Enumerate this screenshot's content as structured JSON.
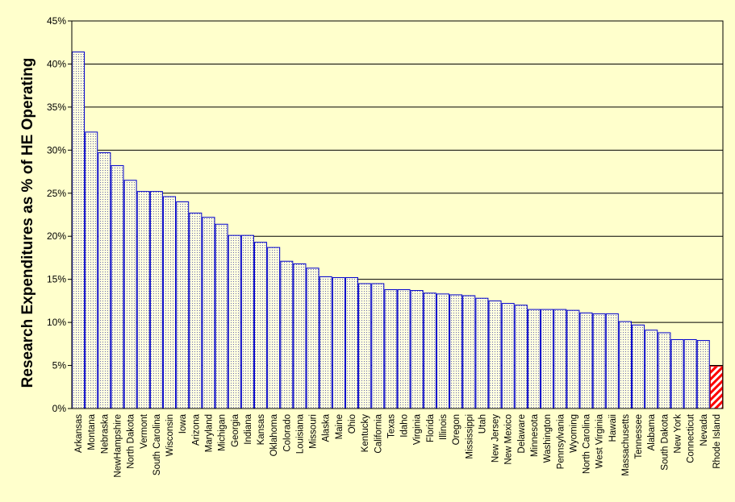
{
  "chart_data": {
    "type": "bar",
    "title": "",
    "xlabel": "",
    "ylabel": "Research Expenditures as % of HE Operating",
    "ylim": [
      0,
      45
    ],
    "yticks": [
      0,
      5,
      10,
      15,
      20,
      25,
      30,
      35,
      40,
      45
    ],
    "ytick_labels": [
      "0%",
      "5%",
      "10%",
      "15%",
      "20%",
      "25%",
      "30%",
      "35%",
      "40%",
      "45%"
    ],
    "grid": "horizontal",
    "categories": [
      "Arkansas",
      "Montana",
      "Nebraska",
      "NewHampshire",
      "North Dakota",
      "Vermont",
      "South Carolina",
      "Wisconsin",
      "Iowa",
      "Arizona",
      "Maryland",
      "Michigan",
      "Georgia",
      "Indiana",
      "Kansas",
      "Oklahoma",
      "Colorado",
      "Louisiana",
      "Missouri",
      "Alaska",
      "Maine",
      "Ohio",
      "Kentucky",
      "California",
      "Texas",
      "Idaho",
      "Virginia",
      "Florida",
      "Illinois",
      "Oregon",
      "Mississippi",
      "Utah",
      "New Jersey",
      "New Mexico",
      "Delaware",
      "Minnesota",
      "Washington",
      "Pennsylvania",
      "Wyoming",
      "North Carolina",
      "West Virginia",
      "Hawaii",
      "Massachusetts",
      "Tennessee",
      "Alabama",
      "South Dakota",
      "New York",
      "Connecticut",
      "Nevada",
      "Rhode Island"
    ],
    "values": [
      41.4,
      32.1,
      29.7,
      28.2,
      26.5,
      25.2,
      25.2,
      24.6,
      24.0,
      22.7,
      22.2,
      21.4,
      20.1,
      20.1,
      19.3,
      18.7,
      17.1,
      16.8,
      16.3,
      15.3,
      15.2,
      15.2,
      14.5,
      14.5,
      13.8,
      13.8,
      13.7,
      13.4,
      13.3,
      13.2,
      13.1,
      12.8,
      12.5,
      12.2,
      12.0,
      11.5,
      11.5,
      11.5,
      11.4,
      11.1,
      11.0,
      11.0,
      10.1,
      9.7,
      9.1,
      8.8,
      8.0,
      8.0,
      7.9,
      4.9
    ],
    "highlight": "Rhode Island",
    "colors": {
      "background": "#ffffcc",
      "bar_fill": "#ffffe0",
      "bar_border": "#0000cc",
      "bar_dots": "#6666aa",
      "highlight_fill": "#ffffff",
      "highlight_hatch": "#ff0000",
      "highlight_border": "#cc0000",
      "axis": "#000000"
    }
  }
}
